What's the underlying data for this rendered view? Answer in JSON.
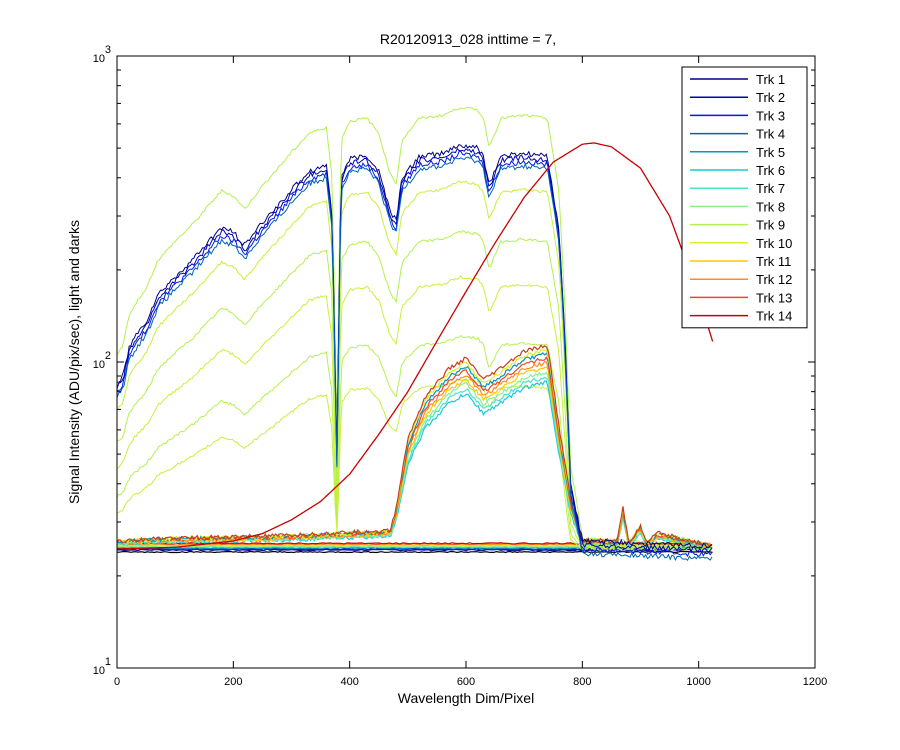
{
  "chart_data": {
    "type": "line",
    "title": "R20120913_028 inttime = 7,",
    "xlabel": "Wavelength Dim/Pixel",
    "ylabel": "Signal Intensity (ADU/pix/sec), light and darks",
    "xlim": [
      0,
      1200
    ],
    "ylim": [
      10,
      1000
    ],
    "yscale": "log",
    "x_ticks": [
      0,
      200,
      400,
      600,
      800,
      1000,
      1200
    ],
    "y_ticks": [
      {
        "base": "10",
        "exp": "1",
        "value": 10
      },
      {
        "base": "10",
        "exp": "2",
        "value": 100
      },
      {
        "base": "10",
        "exp": "3",
        "value": 1000
      }
    ],
    "grid": false,
    "legend_position": "top-right",
    "series": [
      {
        "name": "Trk 1",
        "color": "#00007f"
      },
      {
        "name": "Trk 2",
        "color": "#0000b4"
      },
      {
        "name": "Trk 3",
        "color": "#0019e6"
      },
      {
        "name": "Trk 4",
        "color": "#0064b4"
      },
      {
        "name": "Trk 5",
        "color": "#0096c8"
      },
      {
        "name": "Trk 6",
        "color": "#1ec8dc"
      },
      {
        "name": "Trk 7",
        "color": "#46e6c8"
      },
      {
        "name": "Trk 8",
        "color": "#8cf08c"
      },
      {
        "name": "Trk 9",
        "color": "#b4f050"
      },
      {
        "name": "Trk 10",
        "color": "#dcf028"
      },
      {
        "name": "Trk 11",
        "color": "#ffc800"
      },
      {
        "name": "Trk 12",
        "color": "#ff8c1e"
      },
      {
        "name": "Trk 13",
        "color": "#f04628"
      },
      {
        "name": "Trk 14",
        "color": "#c80000"
      }
    ],
    "trk14_points": [
      [
        0,
        24.5
      ],
      [
        100,
        24.8
      ],
      [
        200,
        26
      ],
      [
        250,
        27.5
      ],
      [
        300,
        30.5
      ],
      [
        350,
        35
      ],
      [
        400,
        43
      ],
      [
        450,
        58
      ],
      [
        500,
        80
      ],
      [
        550,
        117
      ],
      [
        600,
        170
      ],
      [
        650,
        245
      ],
      [
        700,
        345
      ],
      [
        750,
        450
      ],
      [
        800,
        515
      ],
      [
        820,
        520
      ],
      [
        850,
        505
      ],
      [
        900,
        430
      ],
      [
        950,
        300
      ],
      [
        1000,
        165
      ],
      [
        1025,
        115
      ]
    ],
    "dark_level": 24.3,
    "bright_envelope": [
      [
        0,
        85
      ],
      [
        10,
        90
      ],
      [
        20,
        110
      ],
      [
        30,
        120
      ],
      [
        50,
        135
      ],
      [
        70,
        165
      ],
      [
        100,
        190
      ],
      [
        130,
        215
      ],
      [
        160,
        250
      ],
      [
        180,
        275
      ],
      [
        200,
        265
      ],
      [
        220,
        240
      ],
      [
        230,
        255
      ],
      [
        250,
        285
      ],
      [
        280,
        330
      ],
      [
        300,
        365
      ],
      [
        330,
        420
      ],
      [
        360,
        440
      ],
      [
        370,
        300
      ],
      [
        378,
        50
      ],
      [
        385,
        400
      ],
      [
        400,
        460
      ],
      [
        430,
        470
      ],
      [
        450,
        420
      ],
      [
        470,
        310
      ],
      [
        480,
        290
      ],
      [
        490,
        400
      ],
      [
        520,
        470
      ],
      [
        560,
        480
      ],
      [
        590,
        510
      ],
      [
        620,
        500
      ],
      [
        630,
        470
      ],
      [
        640,
        380
      ],
      [
        660,
        470
      ],
      [
        700,
        480
      ],
      [
        740,
        470
      ],
      [
        760,
        270
      ],
      [
        770,
        120
      ],
      [
        780,
        40
      ],
      [
        800,
        26
      ],
      [
        1025,
        25
      ]
    ],
    "mid_envelope": [
      [
        0,
        26
      ],
      [
        100,
        26.5
      ],
      [
        300,
        27
      ],
      [
        380,
        27.5
      ],
      [
        470,
        28
      ],
      [
        480,
        33
      ],
      [
        500,
        55
      ],
      [
        530,
        75
      ],
      [
        570,
        92
      ],
      [
        600,
        100
      ],
      [
        630,
        85
      ],
      [
        650,
        90
      ],
      [
        700,
        105
      ],
      [
        740,
        110
      ],
      [
        760,
        60
      ],
      [
        780,
        35
      ],
      [
        800,
        26
      ],
      [
        860,
        26
      ],
      [
        870,
        33
      ],
      [
        880,
        25.5
      ],
      [
        900,
        29
      ],
      [
        910,
        25.5
      ],
      [
        930,
        27.5
      ],
      [
        1025,
        25
      ]
    ]
  }
}
